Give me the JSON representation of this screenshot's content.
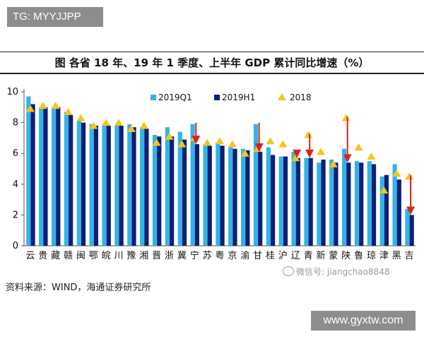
{
  "watermark_top": "TG: MYYJJPP",
  "watermark_wechat": "微信号: jiangchao8848",
  "watermark_site": "www.gyxtw.com",
  "source": "资料来源：WIND，海通证券研究所",
  "colors": {
    "q1": "#33b3e6",
    "h1": "#0b1f78",
    "y2018": "#f7c51a",
    "arrow": "#d9231c"
  },
  "chart_data": {
    "type": "bar",
    "title": "图    各省 18 年、19 年 1 季度、上半年 GDP 累计同比增速（%）",
    "xlabel": "",
    "ylabel": "",
    "ylim": [
      0,
      10
    ],
    "yticks": [
      0,
      2,
      4,
      6,
      8,
      10
    ],
    "categories": [
      "云",
      "贵",
      "藏",
      "赣",
      "闽",
      "鄂",
      "皖",
      "川",
      "豫",
      "湘",
      "晋",
      "浙",
      "冀",
      "宁",
      "苏",
      "粤",
      "京",
      "渝",
      "甘",
      "桂",
      "沪",
      "辽",
      "青",
      "新",
      "蒙",
      "陕",
      "鲁",
      "琼",
      "津",
      "黑",
      "吉"
    ],
    "series": [
      {
        "name": "2019Q1",
        "kind": "bar",
        "values": [
          9.7,
          9.0,
          9.0,
          8.7,
          8.1,
          7.9,
          7.9,
          7.8,
          7.9,
          7.7,
          7.2,
          7.7,
          7.4,
          7.9,
          6.6,
          6.7,
          6.4,
          6.3,
          7.9,
          6.4,
          5.8,
          6.1,
          5.7,
          5.4,
          5.6,
          6.3,
          5.5,
          5.5,
          4.5,
          5.3,
          2.4
        ]
      },
      {
        "name": "2019H1",
        "kind": "bar",
        "values": [
          9.2,
          9.0,
          9.0,
          8.5,
          8.0,
          7.8,
          7.8,
          7.8,
          7.7,
          7.6,
          7.1,
          7.1,
          6.9,
          6.6,
          6.5,
          6.5,
          6.3,
          6.2,
          6.1,
          5.9,
          5.8,
          5.7,
          5.7,
          5.6,
          5.4,
          5.4,
          5.4,
          5.3,
          4.6,
          4.3,
          2.0
        ]
      },
      {
        "name": "2018",
        "kind": "marker",
        "values": [
          8.9,
          9.1,
          9.1,
          8.7,
          8.3,
          7.8,
          8.0,
          8.0,
          7.6,
          7.8,
          6.7,
          7.1,
          6.6,
          7.0,
          6.7,
          6.8,
          6.6,
          6.0,
          6.3,
          6.8,
          6.6,
          5.7,
          7.2,
          6.1,
          5.3,
          8.3,
          6.4,
          5.8,
          3.6,
          4.7,
          4.5
        ]
      }
    ],
    "arrows": [
      {
        "category": "宁",
        "from": 7.9,
        "to": 6.6
      },
      {
        "category": "甘",
        "from": 7.9,
        "to": 6.1
      },
      {
        "category": "辽",
        "from": 6.1,
        "to": 5.7
      },
      {
        "category": "青",
        "from": 7.2,
        "to": 5.7
      },
      {
        "category": "陕",
        "from": 8.3,
        "to": 5.4
      },
      {
        "category": "吉",
        "from": 4.5,
        "to": 2.0
      }
    ],
    "legend": [
      "2019Q1",
      "2019H1",
      "2018"
    ],
    "legend_position": "top-right"
  }
}
